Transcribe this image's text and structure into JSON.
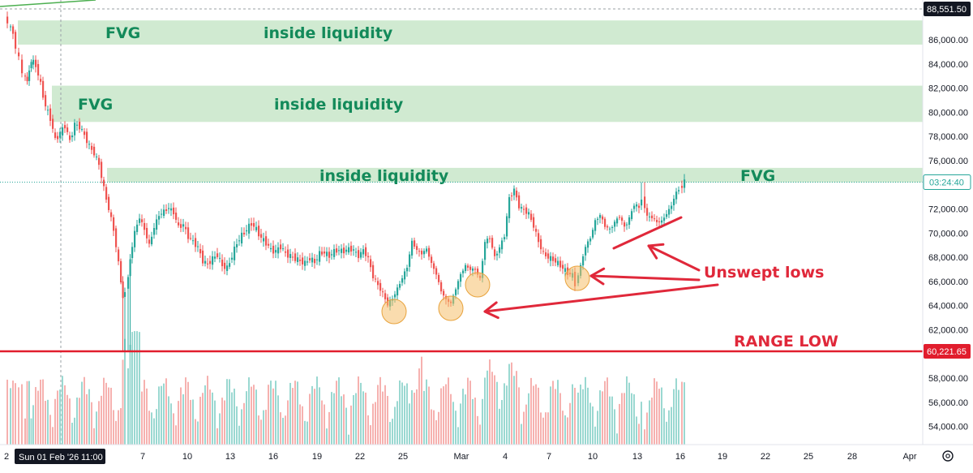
{
  "chart_data": {
    "type": "candlestick",
    "y_axis": {
      "range": [
        52500,
        89000
      ],
      "ticks": [
        "54,000.00",
        "56,000.00",
        "58,000.00",
        "62,000.00",
        "64,000.00",
        "66,000.00",
        "68,000.00",
        "70,000.00",
        "72,000.00",
        "76,000.00",
        "78,000.00",
        "80,000.00",
        "82,000.00",
        "84,000.00",
        "86,000.00"
      ],
      "labels": {
        "top_price": "88,551.50",
        "countdown": "03:24:40",
        "range_low": "60,221.65"
      }
    },
    "x_axis": {
      "ticks": [
        "7",
        "10",
        "13",
        "16",
        "19",
        "22",
        "25",
        "Mar",
        "4",
        "7",
        "10",
        "13",
        "16",
        "19",
        "22",
        "25",
        "28",
        "Apr"
      ],
      "crosshair_label": "Sun 01 Feb '26",
      "crosshair_time": "11:00"
    },
    "zones": [
      {
        "name": "FVG",
        "low": 85600,
        "high": 87600,
        "label_left": "FVG",
        "label_mid": "inside liquidity"
      },
      {
        "name": "FVG",
        "low": 79200,
        "high": 82200,
        "label_left": "FVG",
        "label_mid": "inside liquidity"
      },
      {
        "name": "FVG",
        "low": 74200,
        "high": 75400,
        "label_mid": "inside liquidity",
        "label_right": "FVG"
      }
    ],
    "levels": [
      {
        "name": "RANGE LOW",
        "value": 60221.65,
        "label": "RANGE LOW",
        "color": "#e11d2d"
      }
    ],
    "annotations": {
      "unswept": "Unswept lows",
      "unswept_lows": [
        64200,
        64400,
        65600,
        65900
      ]
    },
    "colors": {
      "up": "#26a69a",
      "down": "#ef5350",
      "zone_fill": "#c8e6c9",
      "annotation_green": "#138a5a",
      "annotation_red": "#e0283a",
      "circle_fill": "#f5c06b"
    }
  }
}
